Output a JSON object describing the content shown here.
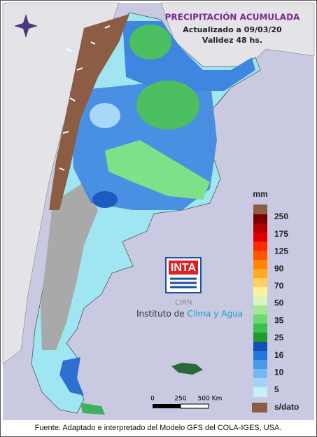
{
  "header": {
    "title": "PRECIPITACIÓN ACUMULADA",
    "updated": "Actualizado a 09/03/20",
    "validity": "Validez 48 hs."
  },
  "legend": {
    "unit": "mm",
    "labels": [
      "250",
      "175",
      "125",
      "90",
      "70",
      "50",
      "35",
      "25",
      "16",
      "10",
      "5"
    ],
    "no_data": "s/dato"
  },
  "scale": {
    "labels": [
      "0",
      "250",
      "500 Km"
    ]
  },
  "logo": {
    "brand": "INTA",
    "center": "CIRN",
    "institute": "Instituto de",
    "institute_highlight": "Clima y Agua"
  },
  "footer": "Fuente: Adaptado e interpretado del Modelo GFS del COLA-IGES, USA."
}
